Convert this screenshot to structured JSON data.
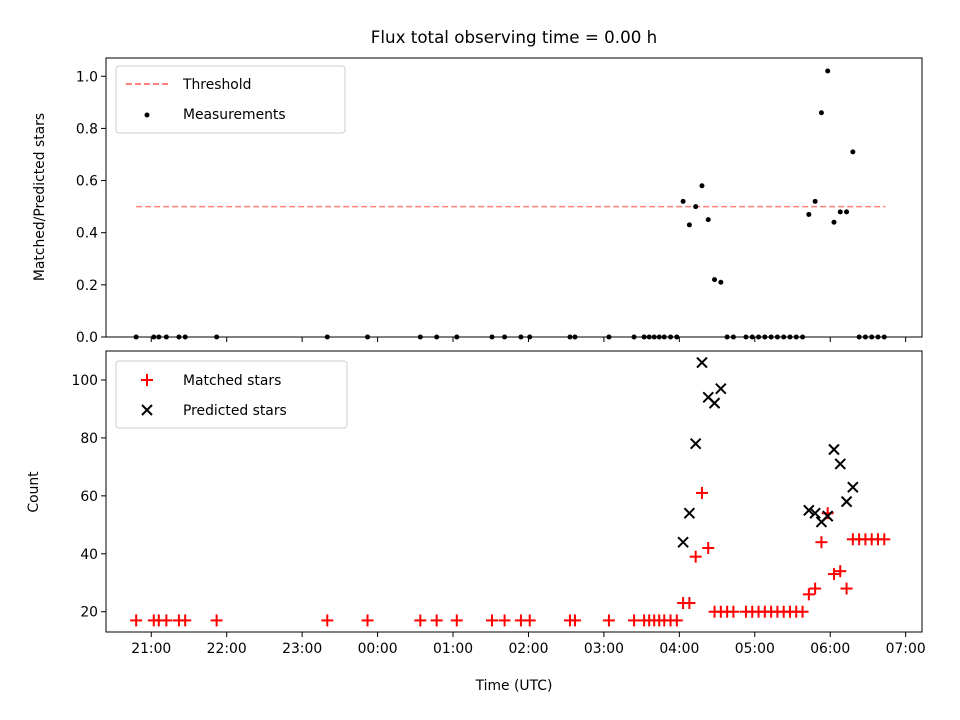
{
  "chart_data": [
    {
      "type": "scatter",
      "title": "Flux total observing time = 0.00 h",
      "xlabel": "",
      "ylabel": "Matched/Predicted stars",
      "ylim": [
        0,
        1.07
      ],
      "yticks": [
        "0.0",
        "0.2",
        "0.4",
        "0.6",
        "0.8",
        "1.0"
      ],
      "xlim": [
        "20:24",
        "07:13"
      ],
      "legend": "top-left",
      "grid": false,
      "threshold": {
        "name": "Threshold",
        "y": 0.5,
        "x_start": "20:48",
        "x_end": "06:44",
        "color": "#ff7f7f",
        "style": "dashed"
      },
      "series": [
        {
          "name": "Measurements",
          "color": "#000000",
          "marker": "dot",
          "points": [
            {
              "x": "20:48",
              "y": 0
            },
            {
              "x": "21:02",
              "y": 0
            },
            {
              "x": "21:06",
              "y": 0
            },
            {
              "x": "21:12",
              "y": 0
            },
            {
              "x": "21:22",
              "y": 0
            },
            {
              "x": "21:27",
              "y": 0
            },
            {
              "x": "21:52",
              "y": 0
            },
            {
              "x": "23:20",
              "y": 0
            },
            {
              "x": "23:52",
              "y": 0
            },
            {
              "x": "00:34",
              "y": 0
            },
            {
              "x": "00:47",
              "y": 0
            },
            {
              "x": "01:03",
              "y": 0
            },
            {
              "x": "01:31",
              "y": 0
            },
            {
              "x": "01:41",
              "y": 0
            },
            {
              "x": "01:54",
              "y": 0
            },
            {
              "x": "02:01",
              "y": 0
            },
            {
              "x": "02:33",
              "y": 0
            },
            {
              "x": "02:37",
              "y": 0
            },
            {
              "x": "03:04",
              "y": 0
            },
            {
              "x": "03:24",
              "y": 0
            },
            {
              "x": "03:32",
              "y": 0
            },
            {
              "x": "03:36",
              "y": 0
            },
            {
              "x": "03:40",
              "y": 0
            },
            {
              "x": "03:44",
              "y": 0
            },
            {
              "x": "03:48",
              "y": 0
            },
            {
              "x": "03:53",
              "y": 0
            },
            {
              "x": "03:58",
              "y": 0
            },
            {
              "x": "04:03",
              "y": 0.52
            },
            {
              "x": "04:08",
              "y": 0.43
            },
            {
              "x": "04:13",
              "y": 0.5
            },
            {
              "x": "04:18",
              "y": 0.58
            },
            {
              "x": "04:23",
              "y": 0.45
            },
            {
              "x": "04:28",
              "y": 0.22
            },
            {
              "x": "04:33",
              "y": 0.21
            },
            {
              "x": "04:38",
              "y": 0
            },
            {
              "x": "04:43",
              "y": 0
            },
            {
              "x": "04:53",
              "y": 0
            },
            {
              "x": "04:58",
              "y": 0
            },
            {
              "x": "05:03",
              "y": 0
            },
            {
              "x": "05:08",
              "y": 0
            },
            {
              "x": "05:13",
              "y": 0
            },
            {
              "x": "05:18",
              "y": 0
            },
            {
              "x": "05:23",
              "y": 0
            },
            {
              "x": "05:28",
              "y": 0
            },
            {
              "x": "05:33",
              "y": 0
            },
            {
              "x": "05:38",
              "y": 0
            },
            {
              "x": "05:43",
              "y": 0.47
            },
            {
              "x": "05:48",
              "y": 0.52
            },
            {
              "x": "05:53",
              "y": 0.86
            },
            {
              "x": "05:58",
              "y": 1.02
            },
            {
              "x": "06:03",
              "y": 0.44
            },
            {
              "x": "06:08",
              "y": 0.48
            },
            {
              "x": "06:13",
              "y": 0.48
            },
            {
              "x": "06:18",
              "y": 0.71
            },
            {
              "x": "06:23",
              "y": 0
            },
            {
              "x": "06:28",
              "y": 0
            },
            {
              "x": "06:33",
              "y": 0
            },
            {
              "x": "06:38",
              "y": 0
            },
            {
              "x": "06:43",
              "y": 0
            }
          ]
        }
      ]
    },
    {
      "type": "scatter",
      "title": "",
      "xlabel": "Time (UTC)",
      "ylabel": "Count",
      "ylim": [
        13,
        110
      ],
      "yticks": [
        "20",
        "40",
        "60",
        "80",
        "100"
      ],
      "xlim": [
        "20:24",
        "07:13"
      ],
      "xticks": [
        "21:00",
        "22:00",
        "23:00",
        "00:00",
        "01:00",
        "02:00",
        "03:00",
        "04:00",
        "05:00",
        "06:00",
        "07:00"
      ],
      "legend": "top-left",
      "grid": false,
      "series": [
        {
          "name": "Matched stars",
          "color": "#ff0000",
          "marker": "plus",
          "points": [
            {
              "x": "20:48",
              "y": 17
            },
            {
              "x": "21:02",
              "y": 17
            },
            {
              "x": "21:06",
              "y": 17
            },
            {
              "x": "21:12",
              "y": 17
            },
            {
              "x": "21:22",
              "y": 17
            },
            {
              "x": "21:27",
              "y": 17
            },
            {
              "x": "21:52",
              "y": 17
            },
            {
              "x": "23:20",
              "y": 17
            },
            {
              "x": "23:52",
              "y": 17
            },
            {
              "x": "00:34",
              "y": 17
            },
            {
              "x": "00:47",
              "y": 17
            },
            {
              "x": "01:03",
              "y": 17
            },
            {
              "x": "01:31",
              "y": 17
            },
            {
              "x": "01:41",
              "y": 17
            },
            {
              "x": "01:54",
              "y": 17
            },
            {
              "x": "02:01",
              "y": 17
            },
            {
              "x": "02:33",
              "y": 17
            },
            {
              "x": "02:37",
              "y": 17
            },
            {
              "x": "03:04",
              "y": 17
            },
            {
              "x": "03:24",
              "y": 17
            },
            {
              "x": "03:32",
              "y": 17
            },
            {
              "x": "03:36",
              "y": 17
            },
            {
              "x": "03:40",
              "y": 17
            },
            {
              "x": "03:44",
              "y": 17
            },
            {
              "x": "03:48",
              "y": 17
            },
            {
              "x": "03:53",
              "y": 17
            },
            {
              "x": "03:58",
              "y": 17
            },
            {
              "x": "04:03",
              "y": 23
            },
            {
              "x": "04:08",
              "y": 23
            },
            {
              "x": "04:13",
              "y": 39
            },
            {
              "x": "04:18",
              "y": 61
            },
            {
              "x": "04:23",
              "y": 42
            },
            {
              "x": "04:28",
              "y": 20
            },
            {
              "x": "04:33",
              "y": 20
            },
            {
              "x": "04:38",
              "y": 20
            },
            {
              "x": "04:43",
              "y": 20
            },
            {
              "x": "04:53",
              "y": 20
            },
            {
              "x": "04:58",
              "y": 20
            },
            {
              "x": "05:03",
              "y": 20
            },
            {
              "x": "05:08",
              "y": 20
            },
            {
              "x": "05:13",
              "y": 20
            },
            {
              "x": "05:18",
              "y": 20
            },
            {
              "x": "05:23",
              "y": 20
            },
            {
              "x": "05:28",
              "y": 20
            },
            {
              "x": "05:33",
              "y": 20
            },
            {
              "x": "05:38",
              "y": 20
            },
            {
              "x": "05:43",
              "y": 26
            },
            {
              "x": "05:48",
              "y": 28
            },
            {
              "x": "05:53",
              "y": 44
            },
            {
              "x": "05:58",
              "y": 54
            },
            {
              "x": "06:03",
              "y": 33
            },
            {
              "x": "06:08",
              "y": 34
            },
            {
              "x": "06:13",
              "y": 28
            },
            {
              "x": "06:18",
              "y": 45
            },
            {
              "x": "06:23",
              "y": 45
            },
            {
              "x": "06:28",
              "y": 45
            },
            {
              "x": "06:33",
              "y": 45
            },
            {
              "x": "06:38",
              "y": 45
            },
            {
              "x": "06:43",
              "y": 45
            }
          ]
        },
        {
          "name": "Predicted stars",
          "color": "#000000",
          "marker": "cross",
          "points": [
            {
              "x": "04:03",
              "y": 44
            },
            {
              "x": "04:08",
              "y": 54
            },
            {
              "x": "04:13",
              "y": 78
            },
            {
              "x": "04:18",
              "y": 106
            },
            {
              "x": "04:23",
              "y": 94
            },
            {
              "x": "04:28",
              "y": 92
            },
            {
              "x": "04:33",
              "y": 97
            },
            {
              "x": "05:43",
              "y": 55
            },
            {
              "x": "05:48",
              "y": 54
            },
            {
              "x": "05:53",
              "y": 51
            },
            {
              "x": "05:58",
              "y": 53
            },
            {
              "x": "06:03",
              "y": 76
            },
            {
              "x": "06:08",
              "y": 71
            },
            {
              "x": "06:13",
              "y": 58
            },
            {
              "x": "06:18",
              "y": 63
            }
          ]
        }
      ]
    }
  ]
}
